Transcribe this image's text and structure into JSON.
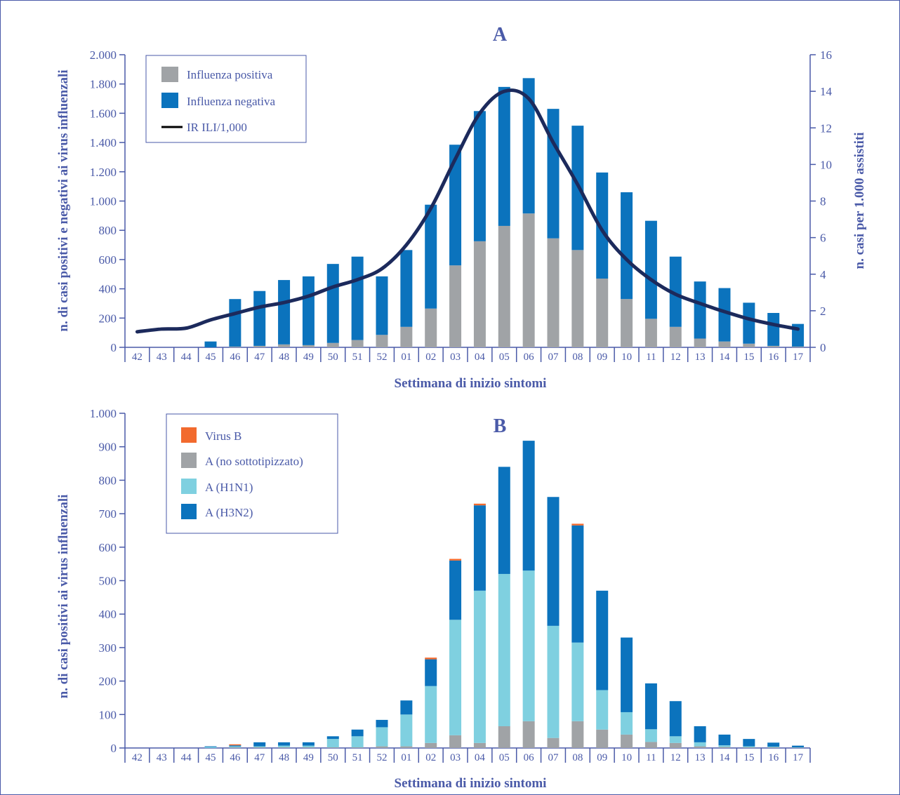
{
  "colors": {
    "axis": "#4a5aa8",
    "frame": "#4a5aa8",
    "influenza_positive": "#a0a3a6",
    "influenza_negative": "#0b73bd",
    "ili_line": "#1c2a5c",
    "virus_b": "#f26a2e",
    "a_no_subtype": "#a0a3a6",
    "a_h1n1": "#7fd0e0",
    "a_h3n2": "#0b73bd"
  },
  "chart_data": [
    {
      "id": "A",
      "type": "bar",
      "title": "A",
      "xlabel": "Settimana di inizio sintomi",
      "ylabel": "n. di casi positivi e negativi ai virus influenzali",
      "y2label": "n. casi per 1.000 assistiti",
      "stacked": true,
      "categories": [
        "42",
        "43",
        "44",
        "45",
        "46",
        "47",
        "48",
        "49",
        "50",
        "51",
        "52",
        "01",
        "02",
        "03",
        "04",
        "05",
        "06",
        "07",
        "08",
        "09",
        "10",
        "11",
        "12",
        "13",
        "14",
        "15",
        "16",
        "17"
      ],
      "ylim": [
        0,
        2000
      ],
      "yticks": [
        0,
        200,
        400,
        600,
        800,
        1000,
        1200,
        1400,
        1600,
        1800,
        2000
      ],
      "ytick_labels": [
        "0",
        "200",
        "400",
        "600",
        "800",
        "1.000",
        "1.200",
        "1.400",
        "1.600",
        "1.800",
        "2.000"
      ],
      "y2lim": [
        0,
        16
      ],
      "y2ticks": [
        0,
        2,
        4,
        6,
        8,
        10,
        12,
        14,
        16
      ],
      "y2tick_labels": [
        "0",
        "2",
        "4",
        "6",
        "8",
        "10",
        "12",
        "14",
        "16"
      ],
      "legend_position": "top-left",
      "series": [
        {
          "name": "Influenza positiva",
          "type": "bar",
          "color": "#a0a3a6",
          "values": [
            0,
            0,
            0,
            0,
            5,
            10,
            20,
            15,
            30,
            50,
            85,
            140,
            265,
            560,
            725,
            830,
            915,
            745,
            665,
            470,
            330,
            195,
            140,
            60,
            40,
            25,
            10,
            5
          ]
        },
        {
          "name": "Influenza negativa",
          "type": "bar",
          "color": "#0b73bd",
          "values": [
            0,
            0,
            0,
            40,
            325,
            375,
            440,
            470,
            540,
            570,
            400,
            525,
            710,
            825,
            890,
            950,
            925,
            885,
            850,
            725,
            730,
            670,
            480,
            390,
            365,
            280,
            225,
            155
          ]
        },
        {
          "name": "IR ILI/1,000",
          "type": "line",
          "axis": "right",
          "color": "#1c2a5c",
          "values": [
            0.85,
            1.0,
            1.05,
            1.5,
            1.85,
            2.2,
            2.45,
            2.8,
            3.3,
            3.7,
            4.3,
            5.6,
            7.6,
            10.3,
            12.8,
            14.0,
            13.6,
            11.2,
            8.9,
            6.4,
            4.8,
            3.7,
            2.9,
            2.4,
            1.95,
            1.55,
            1.25,
            1.0
          ]
        }
      ]
    },
    {
      "id": "B",
      "type": "bar",
      "title": "B",
      "xlabel": "Settimana di inizio sintomi",
      "ylabel": "n. di casi positivi ai virus influenzali",
      "stacked": true,
      "categories": [
        "42",
        "43",
        "44",
        "45",
        "46",
        "47",
        "48",
        "49",
        "50",
        "51",
        "52",
        "01",
        "02",
        "03",
        "04",
        "05",
        "06",
        "07",
        "08",
        "09",
        "10",
        "11",
        "12",
        "13",
        "14",
        "15",
        "16",
        "17"
      ],
      "ylim": [
        0,
        1000
      ],
      "yticks": [
        0,
        100,
        200,
        300,
        400,
        500,
        600,
        700,
        800,
        900,
        1000
      ],
      "ytick_labels": [
        "0",
        "100",
        "200",
        "300",
        "400",
        "500",
        "600",
        "700",
        "800",
        "900",
        "1.000"
      ],
      "legend_position": "top-left",
      "series": [
        {
          "name": "Virus B",
          "color": "#f26a2e",
          "values": [
            0,
            0,
            0,
            0,
            3,
            0,
            0,
            0,
            0,
            0,
            0,
            0,
            5,
            5,
            5,
            0,
            0,
            0,
            5,
            0,
            0,
            0,
            0,
            0,
            0,
            0,
            0,
            0
          ]
        },
        {
          "name": "A (no sottotipizzato)",
          "color": "#a0a3a6",
          "values": [
            0,
            0,
            0,
            0,
            2,
            2,
            2,
            2,
            2,
            2,
            5,
            5,
            15,
            38,
            15,
            65,
            80,
            30,
            80,
            55,
            40,
            18,
            15,
            5,
            3,
            2,
            2,
            1
          ]
        },
        {
          "name": "A (H1N1)",
          "color": "#7fd0e0",
          "values": [
            0,
            0,
            0,
            3,
            3,
            3,
            5,
            5,
            25,
            33,
            57,
            95,
            170,
            345,
            455,
            455,
            450,
            335,
            235,
            118,
            67,
            38,
            20,
            12,
            5,
            3,
            2,
            1
          ]
        },
        {
          "name": "A (H3N2)",
          "color": "#0b73bd",
          "values": [
            0,
            0,
            0,
            2,
            3,
            12,
            10,
            10,
            8,
            20,
            22,
            42,
            80,
            177,
            255,
            320,
            388,
            385,
            350,
            297,
            223,
            137,
            105,
            48,
            32,
            22,
            12,
            5
          ]
        }
      ]
    }
  ]
}
